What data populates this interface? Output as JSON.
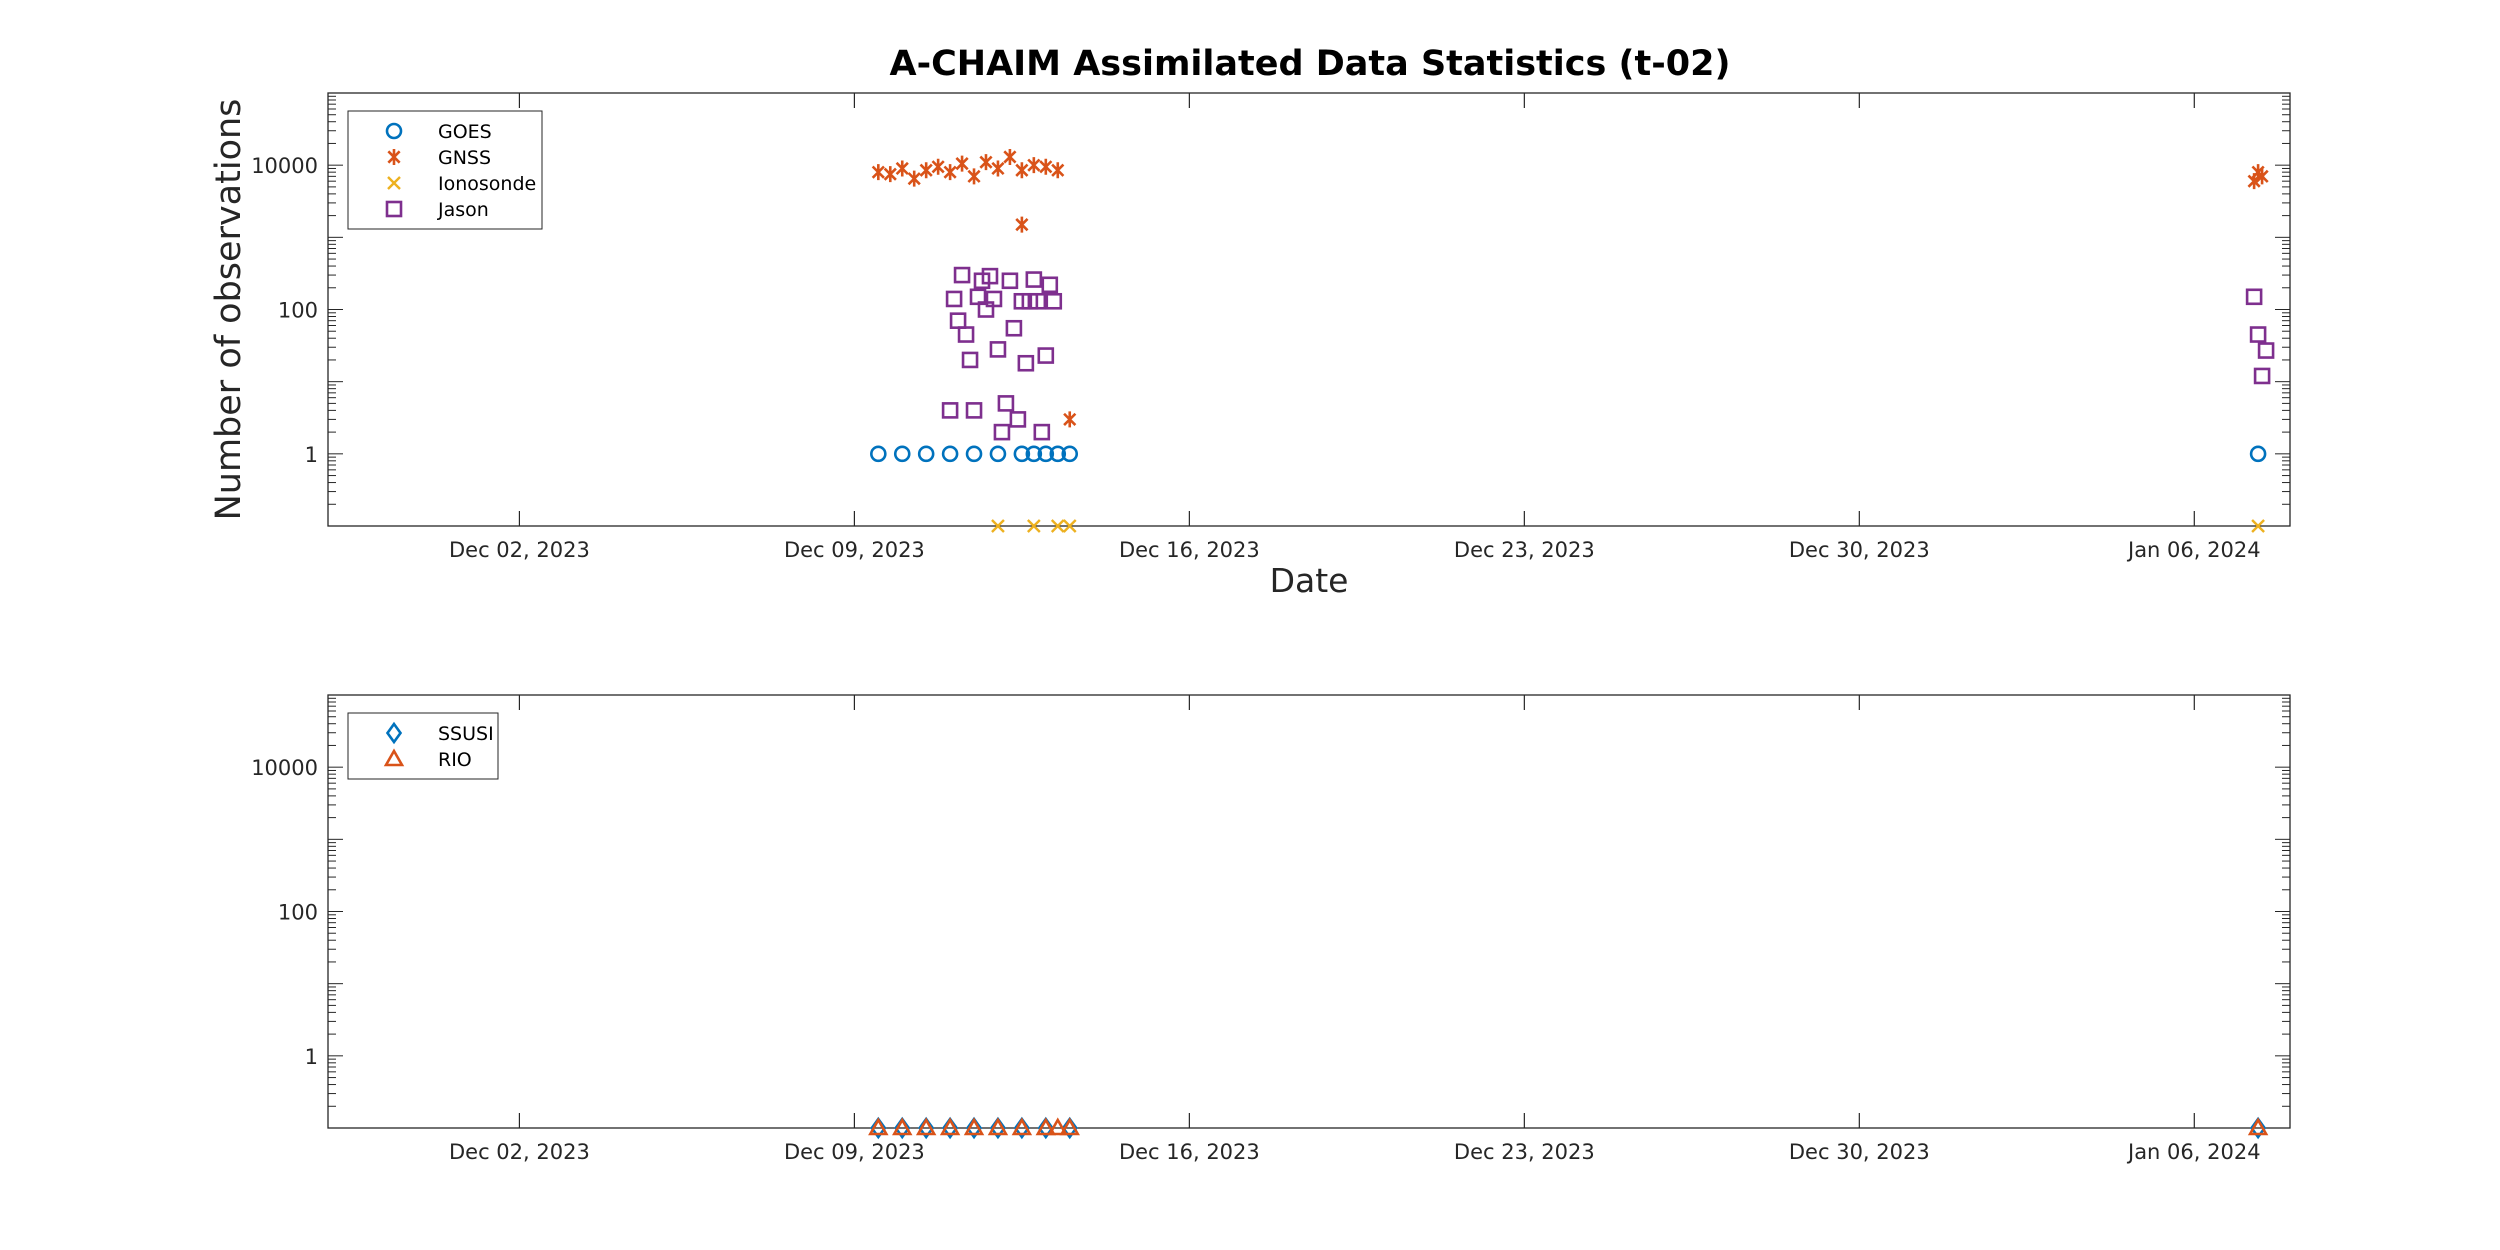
{
  "figure": {
    "title": "A-CHAIM Assimilated Data Statistics (t-02)"
  },
  "chart_data": [
    {
      "type": "scatter",
      "title": "A-CHAIM Assimilated Data Statistics (t-02)",
      "xlabel": "Date",
      "ylabel": "Number of observations",
      "y_scale": "log",
      "xlim": [
        "2023-11-28",
        "2024-01-08"
      ],
      "ylim": [
        0.1,
        100000
      ],
      "x_ticks": [
        "Dec 02, 2023",
        "Dec 09, 2023",
        "Dec 16, 2023",
        "Dec 23, 2023",
        "Dec 30, 2023",
        "Jan 06, 2024"
      ],
      "y_ticks": [
        "1",
        "100",
        "10000"
      ],
      "legend_position": "top-left",
      "grid": false,
      "series": [
        {
          "name": "GOES",
          "marker": "circle",
          "color": "#0072BD",
          "x": [
            "2023-12-09 12:00",
            "2023-12-10 00:00",
            "2023-12-10 12:00",
            "2023-12-11 00:00",
            "2023-12-11 12:00",
            "2023-12-12 00:00",
            "2023-12-12 12:00",
            "2023-12-12 18:00",
            "2023-12-13 00:00",
            "2023-12-13 06:00",
            "2023-12-13 12:00",
            "2024-01-07 08:00"
          ],
          "y": [
            1,
            1,
            1,
            1,
            1,
            1,
            1,
            1,
            1,
            1,
            1,
            1
          ]
        },
        {
          "name": "GNSS",
          "marker": "asterisk",
          "color": "#D95319",
          "x": [
            "2023-12-09 12:00",
            "2023-12-09 18:00",
            "2023-12-10 00:00",
            "2023-12-10 06:00",
            "2023-12-10 12:00",
            "2023-12-10 18:00",
            "2023-12-11 00:00",
            "2023-12-11 06:00",
            "2023-12-11 12:00",
            "2023-12-11 18:00",
            "2023-12-12 00:00",
            "2023-12-12 06:00",
            "2023-12-12 12:00",
            "2023-12-12 18:00",
            "2023-12-13 00:00",
            "2023-12-13 06:00",
            "2023-12-12 12:00",
            "2023-12-13 12:00",
            "2024-01-07 06:00",
            "2024-01-07 08:00",
            "2024-01-07 10:00"
          ],
          "y": [
            8000,
            7500,
            9000,
            6500,
            8500,
            9500,
            8000,
            10500,
            7000,
            11000,
            9000,
            13000,
            8500,
            10000,
            9500,
            8500,
            1500,
            3,
            6000,
            8000,
            7000
          ]
        },
        {
          "name": "Ionosonde",
          "marker": "x",
          "color": "#EDB120",
          "x": [
            "2023-12-12 00:00",
            "2023-12-12 18:00",
            "2023-12-13 06:00",
            "2023-12-13 12:00",
            "2024-01-07 08:00"
          ],
          "y": [
            0.1,
            0.1,
            0.1,
            0.1,
            0.1
          ]
        },
        {
          "name": "Jason",
          "marker": "square",
          "color": "#7E2F8E",
          "x": [
            "2023-12-11 00:00",
            "2023-12-11 02:00",
            "2023-12-11 04:00",
            "2023-12-11 06:00",
            "2023-12-11 08:00",
            "2023-12-11 10:00",
            "2023-12-11 12:00",
            "2023-12-11 14:00",
            "2023-12-11 16:00",
            "2023-12-11 18:00",
            "2023-12-11 20:00",
            "2023-12-11 22:00",
            "2023-12-12 00:00",
            "2023-12-12 02:00",
            "2023-12-12 04:00",
            "2023-12-12 06:00",
            "2023-12-12 08:00",
            "2023-12-12 10:00",
            "2023-12-12 12:00",
            "2023-12-12 14:00",
            "2023-12-12 16:00",
            "2023-12-12 18:00",
            "2023-12-12 20:00",
            "2023-12-12 22:00",
            "2023-12-13 00:00",
            "2023-12-13 02:00",
            "2023-12-13 04:00",
            "2024-01-07 06:00",
            "2024-01-07 08:00",
            "2024-01-07 10:00",
            "2024-01-07 12:00"
          ],
          "y": [
            4,
            140,
            70,
            300,
            45,
            20,
            4,
            150,
            250,
            100,
            290,
            140,
            28,
            2,
            5,
            250,
            55,
            3,
            130,
            18,
            130,
            260,
            130,
            2,
            23,
            220,
            130,
            150,
            45,
            12,
            27
          ]
        }
      ]
    },
    {
      "type": "scatter",
      "title": "",
      "xlabel": "",
      "ylabel": "",
      "y_scale": "log",
      "xlim": [
        "2023-11-28",
        "2024-01-08"
      ],
      "ylim": [
        0.1,
        100000
      ],
      "x_ticks": [
        "Dec 02, 2023",
        "Dec 09, 2023",
        "Dec 16, 2023",
        "Dec 23, 2023",
        "Dec 30, 2023",
        "Jan 06, 2024"
      ],
      "y_ticks": [
        "1",
        "100",
        "10000"
      ],
      "legend_position": "top-left",
      "grid": false,
      "series": [
        {
          "name": "SSUSI",
          "marker": "diamond",
          "color": "#0072BD",
          "x": [
            "2023-12-09 12:00",
            "2023-12-10 00:00",
            "2023-12-10 12:00",
            "2023-12-11 00:00",
            "2023-12-11 12:00",
            "2023-12-12 00:00",
            "2023-12-12 12:00",
            "2023-12-13 00:00",
            "2023-12-13 12:00",
            "2024-01-07 08:00"
          ],
          "y": [
            0.1,
            0.1,
            0.1,
            0.1,
            0.1,
            0.1,
            0.1,
            0.1,
            0.1,
            0.1
          ]
        },
        {
          "name": "RIO",
          "marker": "triangle",
          "color": "#D95319",
          "x": [
            "2023-12-09 12:00",
            "2023-12-10 00:00",
            "2023-12-10 12:00",
            "2023-12-11 00:00",
            "2023-12-11 12:00",
            "2023-12-12 00:00",
            "2023-12-12 12:00",
            "2023-12-13 00:00",
            "2023-12-13 06:00",
            "2023-12-13 12:00",
            "2024-01-07 08:00"
          ],
          "y": [
            0.1,
            0.1,
            0.1,
            0.1,
            0.1,
            0.1,
            0.1,
            0.1,
            0.1,
            0.1,
            0.1
          ]
        }
      ]
    }
  ]
}
